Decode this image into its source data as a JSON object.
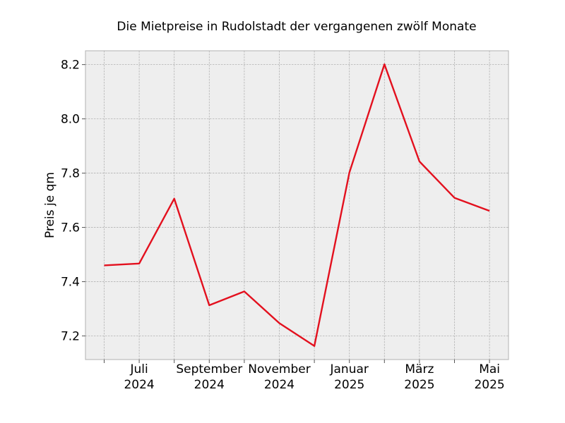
{
  "chart_data": {
    "type": "line",
    "title": "Die Mietpreise in Rudolstadt der vergangenen zwölf Monate",
    "xlabel": "",
    "ylabel": "Preis je qm",
    "x": [
      "2024-06",
      "2024-07",
      "2024-08",
      "2024-09",
      "2024-10",
      "2024-11",
      "2024-12",
      "2025-01",
      "2025-02",
      "2025-03",
      "2025-04",
      "2025-05"
    ],
    "x_ticks": [
      {
        "x": "2024-07",
        "line1": "Juli",
        "line2": "2024"
      },
      {
        "x": "2024-09",
        "line1": "September",
        "line2": "2024"
      },
      {
        "x": "2024-11",
        "line1": "November",
        "line2": "2024"
      },
      {
        "x": "2025-01",
        "line1": "Januar",
        "line2": "2025"
      },
      {
        "x": "2025-03",
        "line1": "März",
        "line2": "2025"
      },
      {
        "x": "2025-05",
        "line1": "Mai",
        "line2": "2025"
      }
    ],
    "series": [
      {
        "values": [
          7.46,
          7.467,
          7.706,
          7.313,
          7.364,
          7.247,
          7.163,
          7.802,
          8.201,
          7.843,
          7.709,
          7.661
        ],
        "color": "#e3101e"
      }
    ],
    "ylim": [
      7.113,
      8.251
    ],
    "yticks": [
      "7.2",
      "7.4",
      "7.6",
      "7.8",
      "8.0",
      "8.2"
    ],
    "grid": true,
    "colors": {
      "background": "#eeeeee",
      "grid": "#b2b2b2",
      "line": "#e3101e"
    }
  }
}
